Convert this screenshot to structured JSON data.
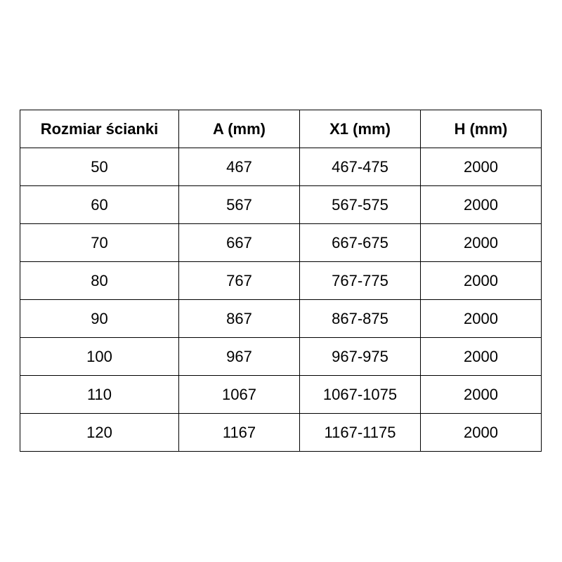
{
  "table": {
    "headers": [
      "Rozmiar ścianki",
      "A (mm)",
      "X1 (mm)",
      "H (mm)"
    ],
    "rows": [
      [
        "50",
        "467",
        "467-475",
        "2000"
      ],
      [
        "60",
        "567",
        "567-575",
        "2000"
      ],
      [
        "70",
        "667",
        "667-675",
        "2000"
      ],
      [
        "80",
        "767",
        "767-775",
        "2000"
      ],
      [
        "90",
        "867",
        "867-875",
        "2000"
      ],
      [
        "100",
        "967",
        "967-975",
        "2000"
      ],
      [
        "110",
        "1067",
        "1067-1075",
        "2000"
      ],
      [
        "120",
        "1167",
        "1167-1175",
        "2000"
      ]
    ]
  }
}
